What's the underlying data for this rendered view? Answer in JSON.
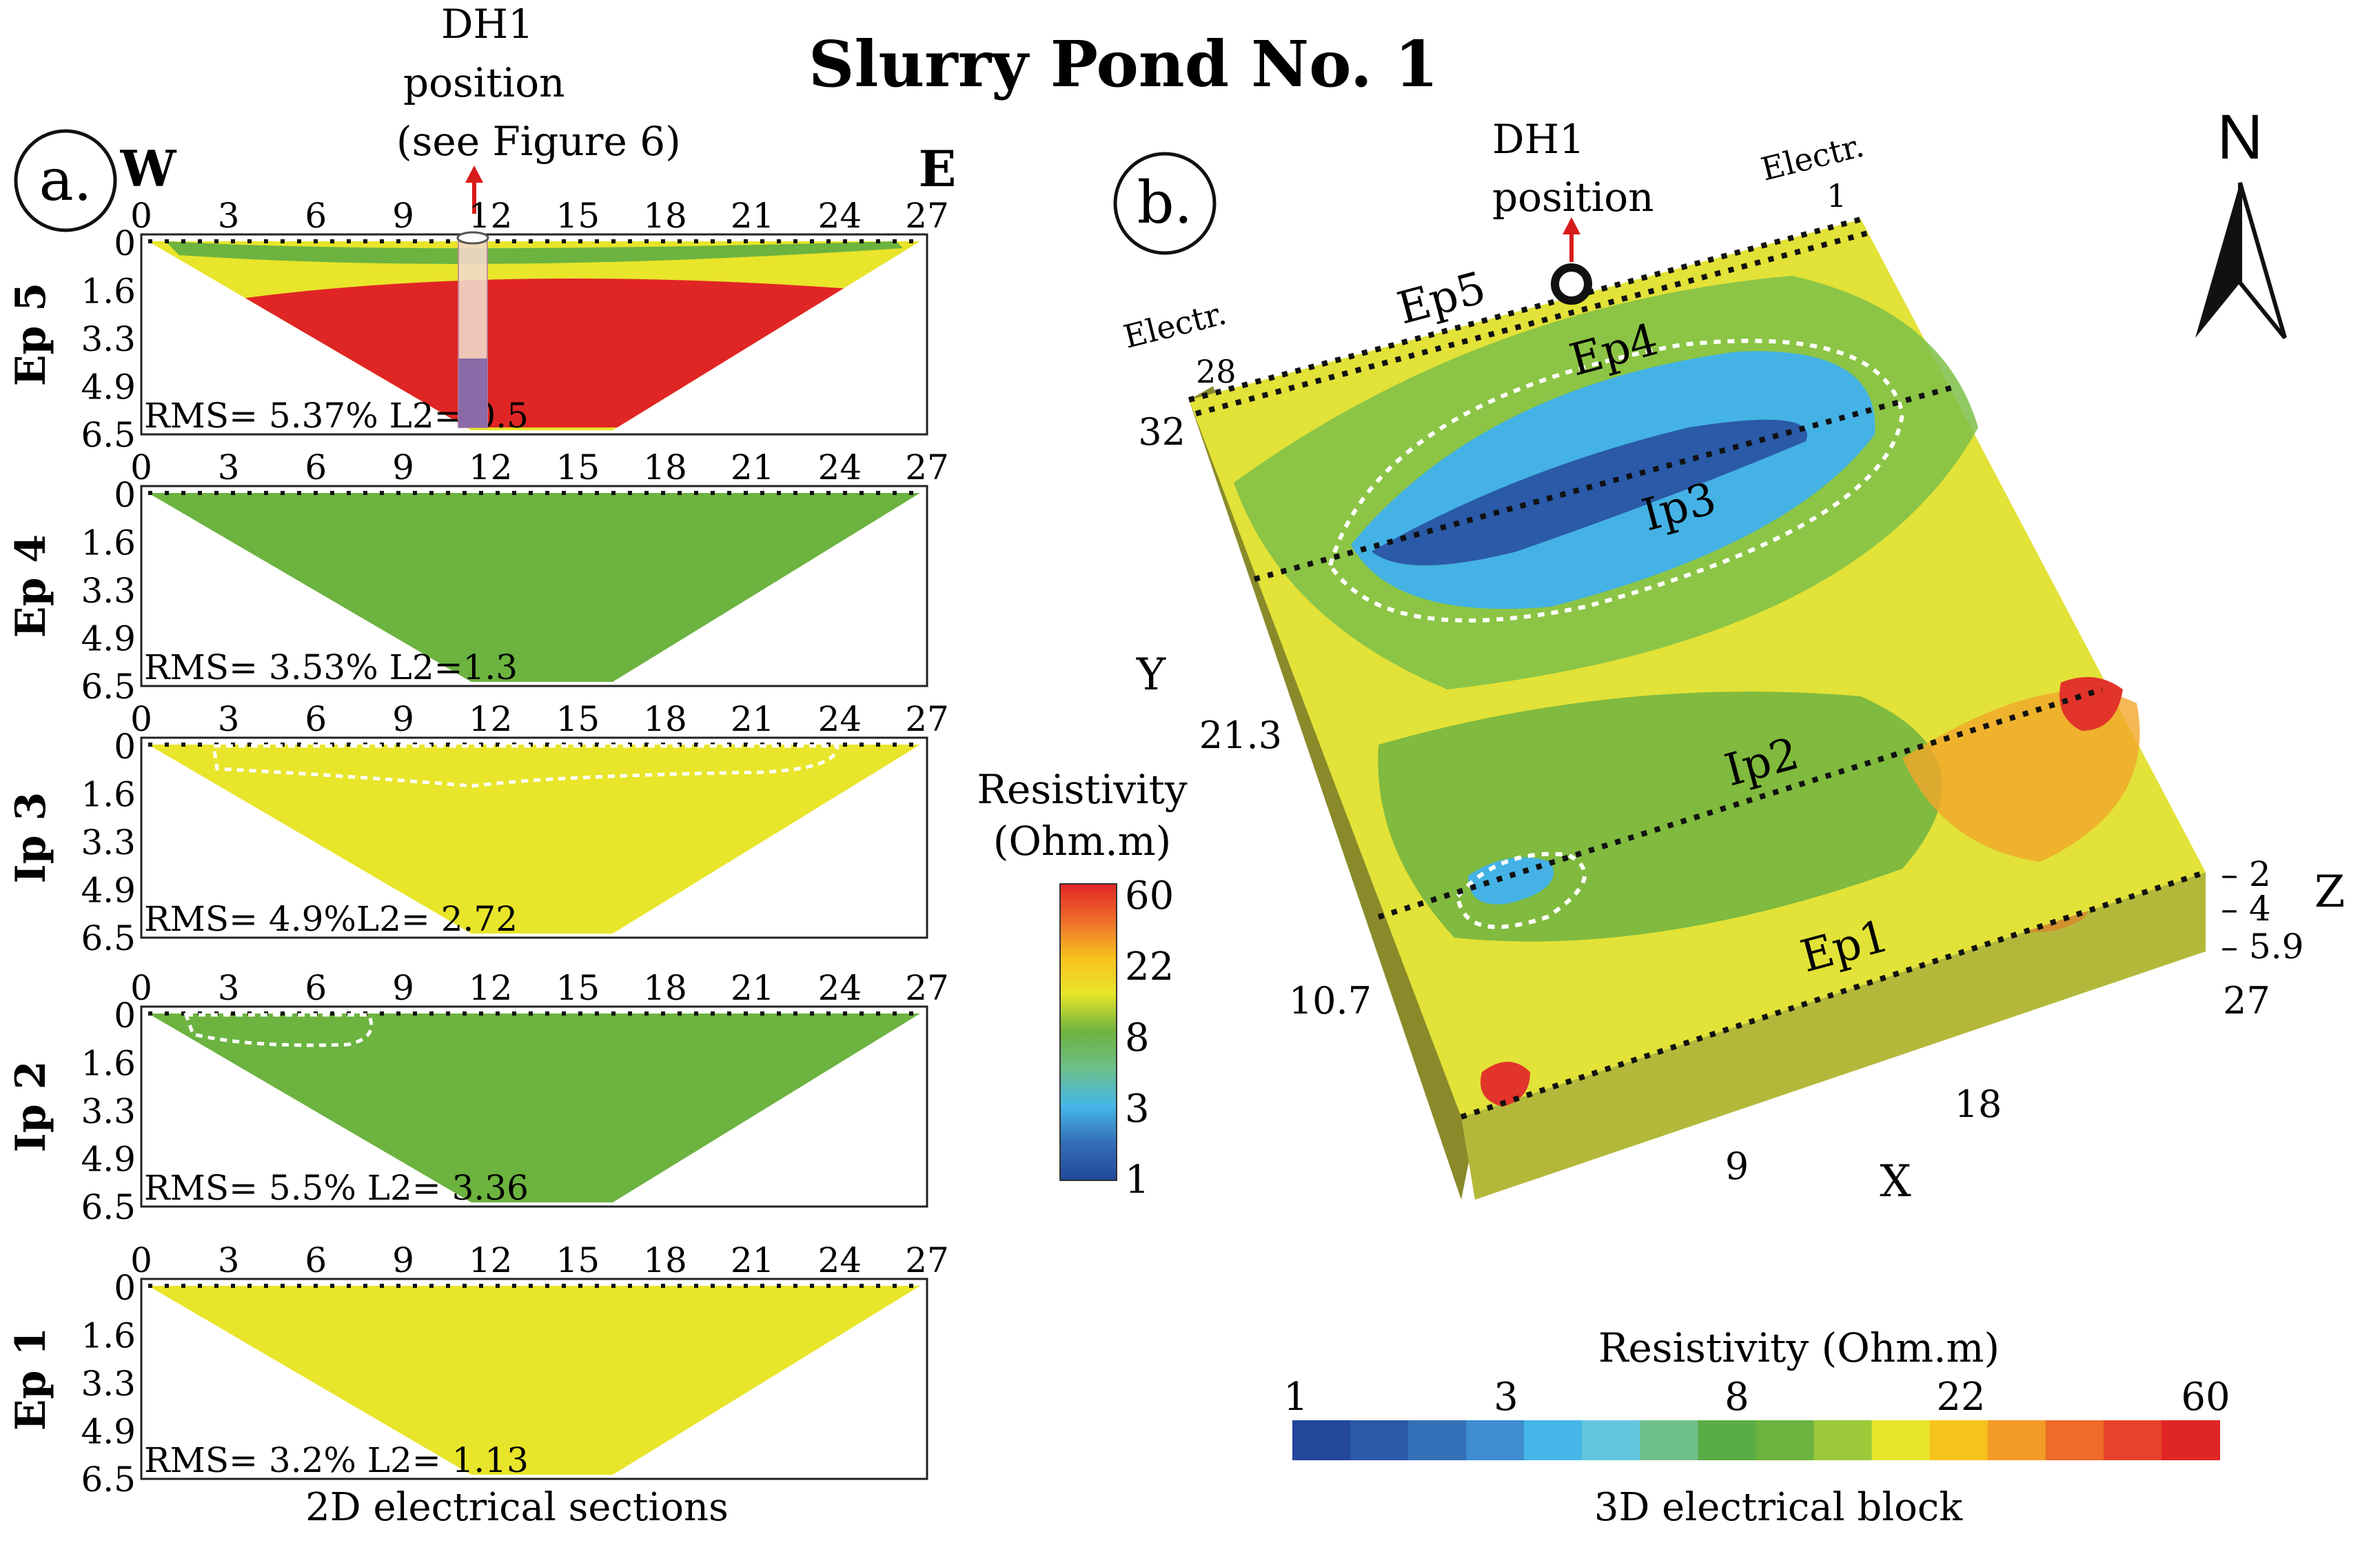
{
  "title": "Slurry Pond No. 1",
  "panel_a": {
    "label": "a.",
    "west": "W",
    "east": "E",
    "dh1_line1": "DH1",
    "dh1_line2": "position",
    "dh1_line3": "(see Figure 6)",
    "x_ticks": [
      "0",
      "3",
      "6",
      "9",
      "12",
      "15",
      "18",
      "21",
      "24",
      "27"
    ],
    "depth_ticks": [
      "0",
      "1.6",
      "3.3",
      "4.9",
      "6.5"
    ],
    "caption": "2D electrical sections",
    "sections": [
      {
        "name": "Ep 5",
        "stats": "RMS= 5.37% L2= 0.5"
      },
      {
        "name": "Ep 4",
        "stats": "RMS= 3.53% L2=1.3"
      },
      {
        "name": "Ip 3",
        "stats": "RMS= 4.9%L2= 2.72"
      },
      {
        "name": "Ip 2",
        "stats": "RMS= 5.5% L2= 3.36"
      },
      {
        "name": "Ep 1",
        "stats": "RMS= 3.2% L2= 1.13"
      }
    ]
  },
  "legend_vertical": {
    "title_line1": "Resistivity",
    "title_line2": "(Ohm.m)",
    "ticks": [
      "60",
      "22",
      "8",
      "3",
      "1"
    ]
  },
  "panel_b": {
    "label": "b.",
    "dh1_line1": "DH1",
    "dh1_line2": "position",
    "electr_top_right": "Electr.",
    "electr_top_right_num": "1",
    "electr_left": "Electr.",
    "electr_left_num": "28",
    "north": "N",
    "profiles": [
      "Ep5",
      "Ep4",
      "Ip3",
      "Ip2",
      "Ep1"
    ],
    "y_axis_label": "Y",
    "y_ticks": [
      "32",
      "21.3",
      "10.7"
    ],
    "x_axis_label": "X",
    "x_ticks": [
      "9",
      "18",
      "27"
    ],
    "z_axis_label": "Z",
    "z_ticks": [
      "– 2",
      "– 4",
      "– 5.9"
    ]
  },
  "legend_horizontal": {
    "title": "Resistivity (Ohm.m)",
    "ticks": [
      "1",
      "3",
      "8",
      "22",
      "60"
    ],
    "caption": "3D electrical block"
  },
  "colors": {
    "scale": [
      "#22479b",
      "#2a5aa8",
      "#3470b8",
      "#3d8dd0",
      "#45b6e8",
      "#63c6df",
      "#6fbf88",
      "#5aac46",
      "#6cb33f",
      "#9cc93a",
      "#e8e52a",
      "#f7c21e",
      "#f29b26",
      "#ee6b2a",
      "#e8432a",
      "#e02525"
    ],
    "arrow": "#d81b1b"
  }
}
